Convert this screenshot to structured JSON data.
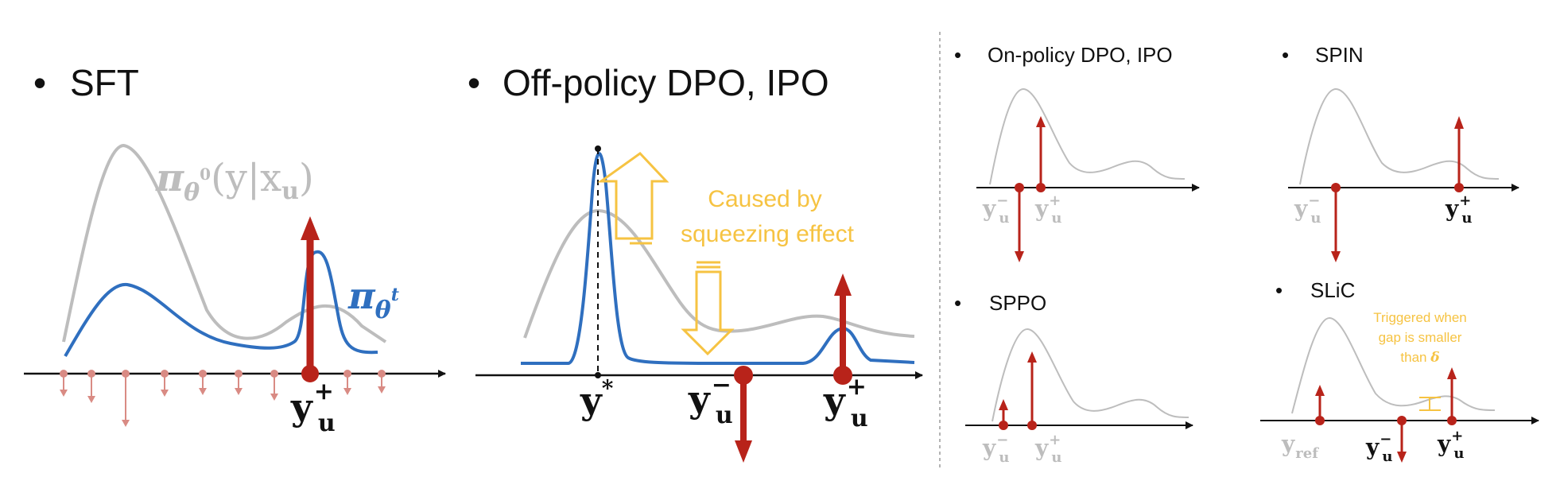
{
  "colors": {
    "axis": "#111111",
    "gray_curve": "#bdbdbd",
    "blue_curve": "#2f6fbf",
    "red": "#b8231a",
    "pink": "#d98b84",
    "yellow": "#f6c342",
    "divider": "#9a9a9a"
  },
  "panels": {
    "sft": {
      "bullet": "•",
      "title": "SFT",
      "ref_policy_label": "π",
      "ref_policy_sub": "θ",
      "ref_policy_sup": "0",
      "ref_policy_arg": "(y|x",
      "ref_policy_arg_sub": "u",
      "ref_policy_close": ")",
      "policy_label": "π",
      "policy_sub": "θ",
      "policy_sup": "t",
      "y_label": "y",
      "y_sup": "+",
      "y_sub": "u"
    },
    "offpolicy": {
      "bullet": "•",
      "title": "Off-policy DPO, IPO",
      "annotation_line1": "Caused by",
      "annotation_line2": "squeezing effect",
      "ystar": "y",
      "ystar_sup": "*",
      "yneg": "y",
      "yneg_sup": "−",
      "yneg_sub": "u",
      "ypos": "y",
      "ypos_sup": "+",
      "ypos_sub": "u"
    },
    "onpolicy": {
      "bullet": "•",
      "title": "On-policy DPO, IPO",
      "yneg": "y",
      "yneg_sup": "−",
      "yneg_sub": "u",
      "ypos": "y",
      "ypos_sup": "+",
      "ypos_sub": "u"
    },
    "spin": {
      "bullet": "•",
      "title": "SPIN",
      "yneg": "y",
      "yneg_sup": "−",
      "yneg_sub": "u",
      "ypos": "y",
      "ypos_sup": "+",
      "ypos_sub": "u"
    },
    "sppo": {
      "bullet": "•",
      "title": "SPPO",
      "yneg": "y",
      "yneg_sup": "−",
      "yneg_sub": "u",
      "ypos": "y",
      "ypos_sup": "+",
      "ypos_sub": "u"
    },
    "slic": {
      "bullet": "•",
      "title": "SLiC",
      "annotation_line1": "Triggered when",
      "annotation_line2": "gap is smaller",
      "annotation_line3": "than ",
      "annotation_delta": "δ",
      "yref": "y",
      "yref_sub": "ref",
      "yneg": "y",
      "yneg_sup": "−",
      "yneg_sub": "u",
      "ypos": "y",
      "ypos_sup": "+",
      "ypos_sub": "u"
    }
  }
}
